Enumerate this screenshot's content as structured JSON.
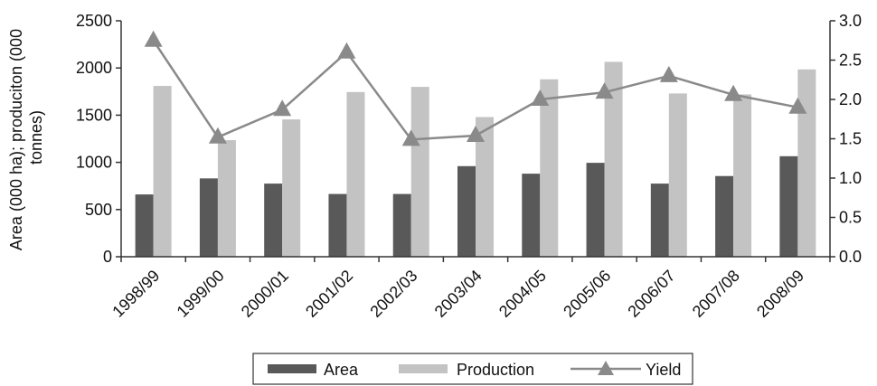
{
  "chart_data": {
    "type": "bar",
    "categories": [
      "1998/99",
      "1999/00",
      "2000/01",
      "2001/02",
      "2002/03",
      "2003/04",
      "2004/05",
      "2005/06",
      "2006/07",
      "2007/08",
      "2008/09"
    ],
    "series": [
      {
        "name": "Area",
        "type": "bar",
        "axis": "left",
        "color": "#595959",
        "values": [
          660,
          830,
          775,
          665,
          665,
          960,
          880,
          995,
          775,
          855,
          1065
        ]
      },
      {
        "name": "Production",
        "type": "bar",
        "axis": "left",
        "color": "#c3c3c3",
        "values": [
          1810,
          1235,
          1455,
          1745,
          1800,
          1480,
          1880,
          2065,
          1730,
          1720,
          1985
        ]
      },
      {
        "name": "Yield",
        "type": "line",
        "axis": "right",
        "color": "#8a8a8a",
        "marker": "triangle",
        "values": [
          2.75,
          1.52,
          1.87,
          2.6,
          1.49,
          1.54,
          2.0,
          2.09,
          2.3,
          2.06,
          1.9
        ]
      }
    ],
    "ylabel": "Area (000 ha); produciton (000 tonnes)",
    "ylabel_lines": [
      "Area (000 ha); produciton (000",
      "tonnes)"
    ],
    "ylim": [
      0,
      2500
    ],
    "yticks": [
      "0",
      "500",
      "1000",
      "1500",
      "2000",
      "2500"
    ],
    "y2lim": [
      0,
      3.0
    ],
    "y2ticks": [
      "0.0",
      "0.5",
      "1.0",
      "1.5",
      "2.0",
      "2.5",
      "3.0"
    ],
    "legend_position": "bottom-center",
    "grid": false
  }
}
